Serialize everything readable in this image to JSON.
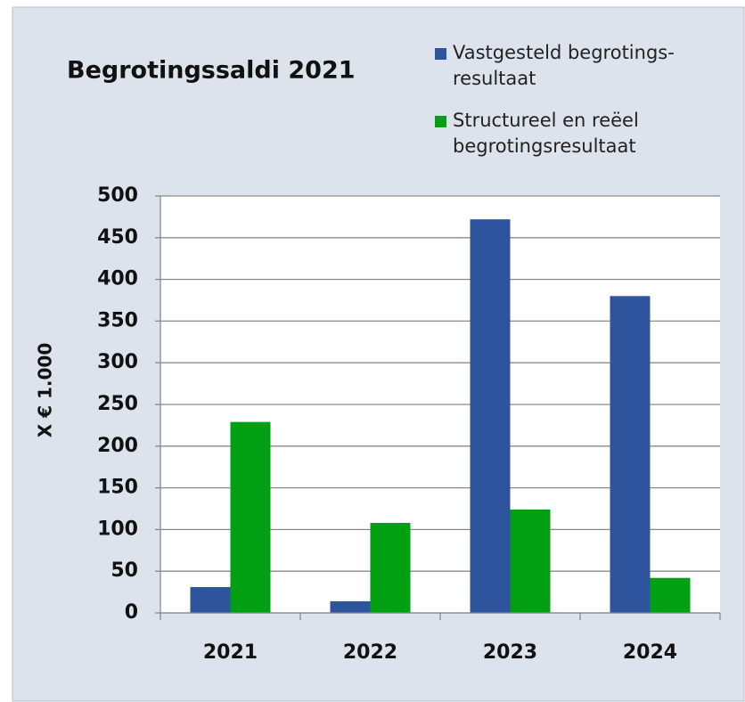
{
  "chart_data": {
    "type": "bar",
    "title": "Begrotingssaldi 2021",
    "y_label": "X € 1.000",
    "categories": [
      "2021",
      "2022",
      "2023",
      "2024"
    ],
    "series": [
      {
        "name": "Vastgesteld begrotings-resultaat",
        "color": "#2f549e",
        "values": [
          31,
          14,
          472,
          380
        ]
      },
      {
        "name": "Structureel en reëel begrotingsresultaat",
        "color": "#00a012",
        "values": [
          229,
          108,
          124,
          42
        ]
      }
    ],
    "ylim": [
      0,
      500
    ],
    "yticks": [
      0,
      50,
      100,
      150,
      200,
      250,
      300,
      350,
      400,
      450,
      500
    ],
    "grid": true
  }
}
